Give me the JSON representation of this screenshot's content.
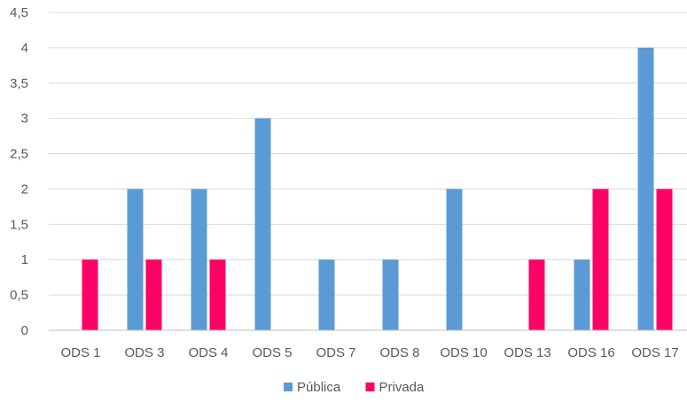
{
  "chart_data": {
    "type": "bar",
    "categories": [
      "ODS 1",
      "ODS 3",
      "ODS 4",
      "ODS 5",
      "ODS 7",
      "ODS 8",
      "ODS 10",
      "ODS 13",
      "ODS 16",
      "ODS 17"
    ],
    "series": [
      {
        "name": "Pública",
        "color": "#5b9bd5",
        "values": [
          0,
          2,
          2,
          3,
          1,
          1,
          2,
          0,
          1,
          4
        ]
      },
      {
        "name": "Privada",
        "color": "#ff0066",
        "values": [
          1,
          1,
          1,
          0,
          0,
          0,
          0,
          1,
          2,
          2
        ]
      }
    ],
    "ylim": [
      0,
      4.5
    ],
    "yticks": [
      "0",
      "0,5",
      "1",
      "1,5",
      "2",
      "2,5",
      "3",
      "3,5",
      "4",
      "4,5"
    ],
    "grid": true,
    "legend_position": "bottom",
    "title": "",
    "xlabel": "",
    "ylabel": ""
  }
}
